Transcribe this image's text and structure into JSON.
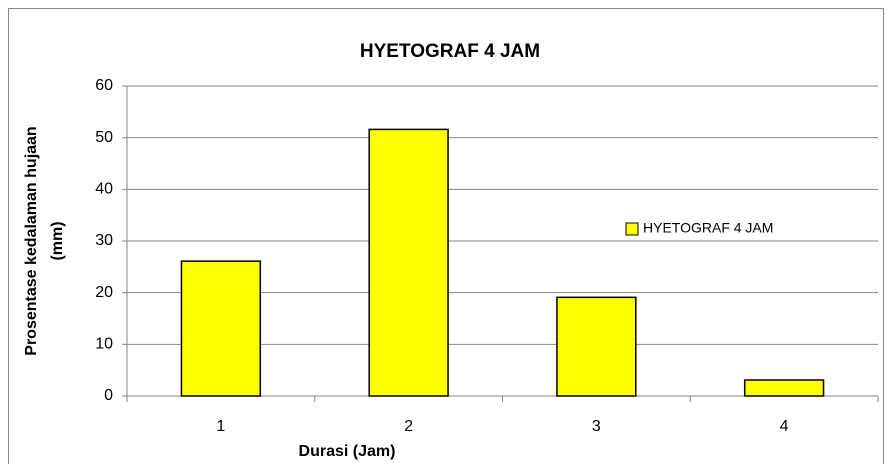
{
  "chart_data": {
    "type": "bar",
    "title": "HYETOGRAF 4 JAM",
    "xlabel": "Durasi (Jam)",
    "ylabel": [
      "Prosentase  kedalaman hujaan",
      "(mm)"
    ],
    "categories": [
      "1",
      "2",
      "3",
      "4"
    ],
    "series": [
      {
        "name": "HYETOGRAF 4 JAM",
        "color": "#ffff00",
        "values": [
          26.1,
          51.6,
          19.1,
          3.1
        ]
      }
    ],
    "ylim": [
      0,
      60
    ],
    "yticks": [
      0,
      10,
      20,
      30,
      40,
      50,
      60
    ],
    "grid": true,
    "legend": "right"
  }
}
